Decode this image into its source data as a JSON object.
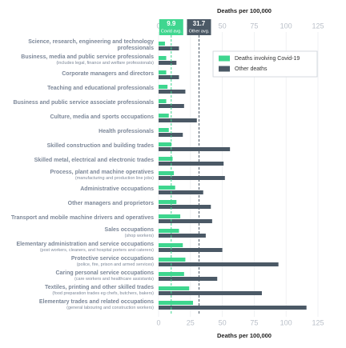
{
  "chart_data": {
    "type": "bar",
    "orientation": "horizontal",
    "x_label": "Deaths per 100,000",
    "categories": [
      "Science, research, engineering and technology professionals",
      "Business, media and public service professionals",
      "Corporate managers and directors",
      "Teaching and educational professionals",
      "Business and public service associate professionals",
      "Culture, media and sports occupations",
      "Health professionals",
      "Skilled construction and building trades",
      "Skilled metal, electrical and electronic trades",
      "Process, plant and machine operatives",
      "Administrative occupations",
      "Other managers and proprietors",
      "Transport and mobile machine drivers and operatives",
      "Sales occupations",
      "Elementary administration and service occupations",
      "Protective service occupations",
      "Caring personal service occupations",
      "Textiles, printing and other skilled trades",
      "Elementary trades and related occupations"
    ],
    "subtitles": [
      null,
      "(includes legal, finance and welfare professionals)",
      null,
      null,
      null,
      null,
      null,
      null,
      null,
      "(manufacturing and production line jobs)",
      null,
      null,
      null,
      "(shop workers)",
      "(post workers, cleaners, and hospital porters and caterers)",
      "(police, fire, prison and armed services)",
      "(care workers and healthcare assistants)",
      "(food preparation trades eg chefs, butchers, bakers)",
      "(general labouring and construction workers)"
    ],
    "series": [
      {
        "name": "Deaths involving Covid-19",
        "color": "#3fd68f",
        "values": [
          5,
          6,
          6,
          7,
          6,
          8,
          8,
          10,
          11,
          12,
          13,
          14,
          17,
          16,
          19,
          21,
          20,
          24,
          27
        ]
      },
      {
        "name": "Other deaths",
        "color": "#4b5966",
        "values": [
          16,
          14,
          16,
          21,
          20,
          30,
          19,
          56,
          51,
          52,
          35,
          41,
          42,
          37,
          50,
          94,
          46,
          81,
          116
        ]
      }
    ],
    "xlim": [
      0,
      125
    ],
    "xticks": [
      0,
      25,
      50,
      75,
      100,
      125
    ],
    "grid": true,
    "legend": "upper right",
    "reference_lines": [
      {
        "value": 9.9,
        "label": "Covid avg.",
        "color": "#3fd68f"
      },
      {
        "value": 31.7,
        "label": "Other avg.",
        "color": "#4b5966"
      }
    ]
  }
}
